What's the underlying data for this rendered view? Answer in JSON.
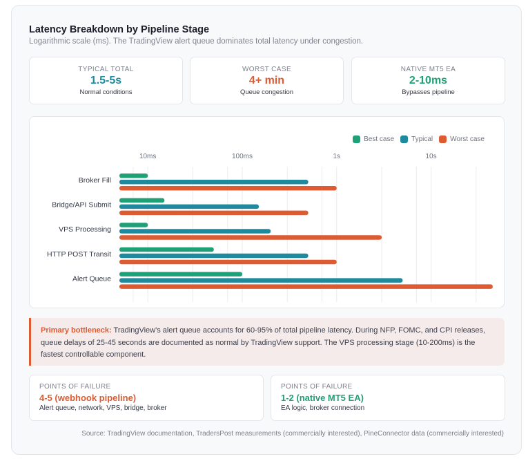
{
  "header": {
    "title": "Latency Breakdown by Pipeline Stage",
    "subtitle": "Logarithmic scale (ms). The TradingView alert queue dominates total latency under congestion."
  },
  "stats": [
    {
      "label": "TYPICAL TOTAL",
      "value": "1.5-5s",
      "sub": "Normal conditions",
      "color": "#1f8a9e"
    },
    {
      "label": "WORST CASE",
      "value": "4+ min",
      "sub": "Queue congestion",
      "color": "#dc5b33"
    },
    {
      "label": "NATIVE MT5 EA",
      "value": "2-10ms",
      "sub": "Bypasses pipeline",
      "color": "#20a077"
    }
  ],
  "chart_data": {
    "type": "bar",
    "orientation": "horizontal",
    "scale": "log",
    "title": "",
    "xlabel": "",
    "ylabel": "",
    "xlim": [
      5,
      60000
    ],
    "x_ticks": [
      10,
      100,
      1000,
      10000
    ],
    "x_tick_labels": [
      "10ms",
      "100ms",
      "1s",
      "10s"
    ],
    "minor_gridlines": [
      7,
      30,
      70,
      300,
      700,
      3000,
      7000,
      30000
    ],
    "grid": true,
    "legend_position": "top-right",
    "categories": [
      "Broker Fill",
      "Bridge/API Submit",
      "VPS Processing",
      "HTTP POST Transit",
      "Alert Queue"
    ],
    "series": [
      {
        "name": "Best case",
        "color": "#20a077",
        "values": [
          10,
          15,
          10,
          50,
          100
        ]
      },
      {
        "name": "Typical",
        "color": "#1f8a9e",
        "values": [
          500,
          150,
          200,
          500,
          5000
        ]
      },
      {
        "name": "Worst case",
        "color": "#dc5b33",
        "values": [
          1000,
          500,
          3000,
          1000,
          45000
        ]
      }
    ]
  },
  "callout": {
    "label": "Primary bottleneck:",
    "text": " TradingView's alert queue accounts for 60-95% of total pipeline latency. During NFP, FOMC, and CPI releases, queue delays of 25-45 seconds are documented as normal by TradingView support. The VPS processing stage (10-200ms) is the fastest controllable component."
  },
  "points_of_failure": [
    {
      "label": "POINTS OF FAILURE",
      "value": "4-5 (webhook pipeline)",
      "sub": "Alert queue, network, VPS, bridge, broker",
      "color": "#dc5b33"
    },
    {
      "label": "POINTS OF FAILURE",
      "value": "1-2 (native MT5 EA)",
      "sub": "EA logic, broker connection",
      "color": "#20a077"
    }
  ],
  "source": "Source: TradingView documentation, TradersPost measurements (commercially interested), PineConnector data (commercially interested)"
}
